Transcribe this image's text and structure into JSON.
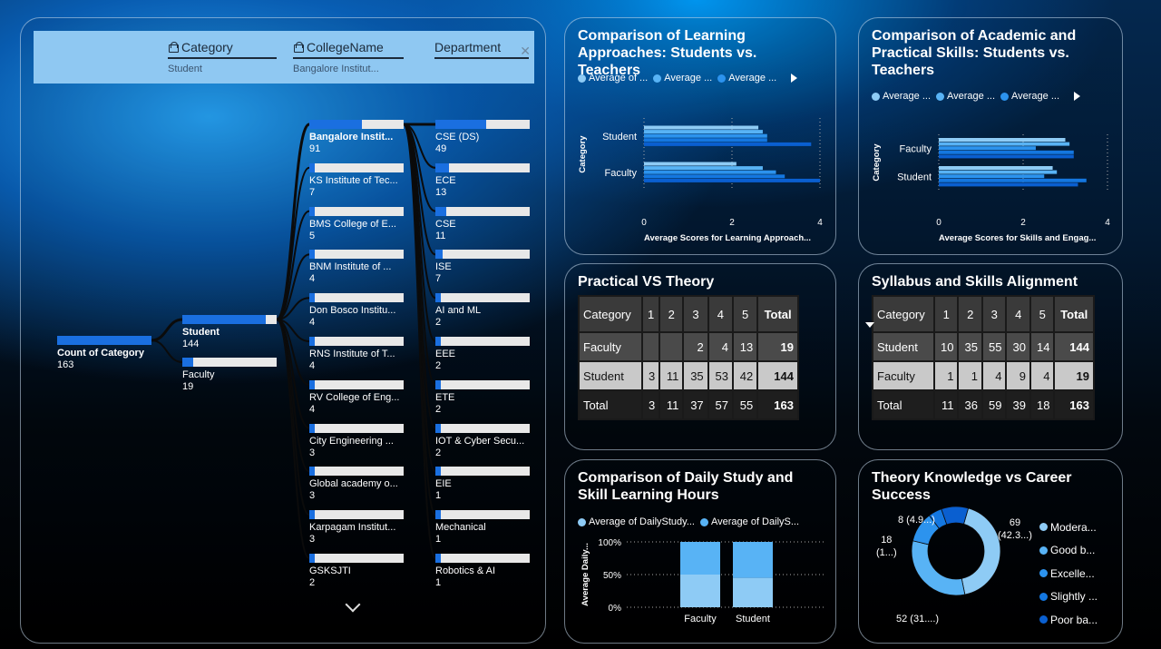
{
  "colors": {
    "c1": "#8ecbf5",
    "c2": "#58b3f5",
    "c3": "#2c93ee",
    "c4": "#1477e0",
    "c5": "#0a5fd0"
  },
  "tree": {
    "filters": [
      {
        "label": "Category",
        "value": "Student",
        "locked": true
      },
      {
        "label": "CollegeName",
        "value": "Bangalore Institut...",
        "locked": true
      },
      {
        "label": "Department",
        "value": "",
        "locked": false
      }
    ],
    "root": {
      "label": "Count of Category",
      "value": "163"
    },
    "level1": [
      {
        "label": "Student",
        "value": "144",
        "fill": 0.88,
        "bold": true
      },
      {
        "label": "Faculty",
        "value": "19",
        "fill": 0.12,
        "bold": false
      }
    ],
    "colleges": [
      {
        "label": "Bangalore Instit...",
        "value": "91",
        "fill": 0.56,
        "bold": true
      },
      {
        "label": "KS Institute of Tec...",
        "value": "7",
        "fill": 0.05
      },
      {
        "label": "BMS College of E...",
        "value": "5",
        "fill": 0.04
      },
      {
        "label": "BNM Institute of ...",
        "value": "4",
        "fill": 0.03
      },
      {
        "label": "Don Bosco Institu...",
        "value": "4",
        "fill": 0.03
      },
      {
        "label": "RNS Institute of T...",
        "value": "4",
        "fill": 0.03
      },
      {
        "label": "RV College of Eng...",
        "value": "4",
        "fill": 0.03
      },
      {
        "label": "City Engineering ...",
        "value": "3",
        "fill": 0.02
      },
      {
        "label": "Global academy o...",
        "value": "3",
        "fill": 0.02
      },
      {
        "label": "Karpagam Institut...",
        "value": "3",
        "fill": 0.02
      },
      {
        "label": "GSKSJTI",
        "value": "2",
        "fill": 0.01
      }
    ],
    "departments": [
      {
        "label": "CSE (DS)",
        "value": "49",
        "fill": 0.54
      },
      {
        "label": "ECE",
        "value": "13",
        "fill": 0.14
      },
      {
        "label": "CSE",
        "value": "11",
        "fill": 0.12
      },
      {
        "label": "ISE",
        "value": "7",
        "fill": 0.08
      },
      {
        "label": "AI and ML",
        "value": "2",
        "fill": 0.02
      },
      {
        "label": "EEE",
        "value": "2",
        "fill": 0.02
      },
      {
        "label": "ETE",
        "value": "2",
        "fill": 0.02
      },
      {
        "label": "IOT & Cyber Secu...",
        "value": "2",
        "fill": 0.02
      },
      {
        "label": "EIE",
        "value": "1",
        "fill": 0.01
      },
      {
        "label": "Mechanical",
        "value": "1",
        "fill": 0.01
      },
      {
        "label": "Robotics & AI",
        "value": "1",
        "fill": 0.01
      }
    ]
  },
  "learning_chart": {
    "title": "Comparison of Learning Approaches: Students vs. Teachers",
    "legend": [
      "Average of ...",
      "Average ...",
      "Average ..."
    ],
    "ylabel": "Category",
    "xlabel": "Average Scores for Learning Approach...",
    "ticks": [
      "0",
      "2",
      "4"
    ]
  },
  "skills_chart": {
    "title": "Comparison of Academic and Practical Skills: Students vs. Teachers",
    "legend": [
      "Average ...",
      "Average ...",
      "Average ..."
    ],
    "ylabel": "Category",
    "xlabel": "Average Scores for Skills and Engag...",
    "ticks": [
      "0",
      "2",
      "4"
    ]
  },
  "practical_table": {
    "title": "Practical VS Theory",
    "headers": [
      "Category",
      "1",
      "2",
      "3",
      "4",
      "5",
      "Total"
    ],
    "rows": [
      [
        "Faculty",
        "",
        "",
        "2",
        "4",
        "13",
        "19"
      ],
      [
        "Student",
        "3",
        "11",
        "35",
        "53",
        "42",
        "144"
      ],
      [
        "Total",
        "3",
        "11",
        "37",
        "57",
        "55",
        "163"
      ]
    ]
  },
  "syllabus_table": {
    "title": "Syllabus and Skills Alignment",
    "headers": [
      "Category",
      "1",
      "2",
      "3",
      "4",
      "5",
      "Total"
    ],
    "rows": [
      [
        "Student",
        "10",
        "35",
        "55",
        "30",
        "14",
        "144"
      ],
      [
        "Faculty",
        "1",
        "1",
        "4",
        "9",
        "4",
        "19"
      ],
      [
        "Total",
        "11",
        "36",
        "59",
        "39",
        "18",
        "163"
      ]
    ]
  },
  "study_chart": {
    "title": "Comparison of Daily Study and Skill Learning Hours",
    "legend": [
      "Average of DailyStudy...",
      "Average of DailyS..."
    ],
    "ylabel": "Average Daily...",
    "ticks": [
      "100%",
      "50%",
      "0%"
    ]
  },
  "theory_donut": {
    "title": "Theory Knowledge vs Career Success",
    "labels": [
      "69\n(42.3...)",
      "52 (31....)",
      "18\n(1...)",
      "8 (4.9...)"
    ],
    "legend": [
      "Modera...",
      "Good b...",
      "Excelle...",
      "Slightly ...",
      "Poor ba..."
    ]
  },
  "chart_data": [
    {
      "type": "bar",
      "orientation": "horizontal",
      "title": "Comparison of Learning Approaches: Students vs. Teachers",
      "categories": [
        "Student",
        "Faculty"
      ],
      "series": [
        {
          "values": [
            2.6,
            2.1
          ]
        },
        {
          "values": [
            2.7,
            2.7
          ]
        },
        {
          "values": [
            2.8,
            3.0
          ]
        },
        {
          "values": [
            2.8,
            3.2
          ]
        },
        {
          "values": [
            3.8,
            4.0
          ]
        }
      ],
      "xlabel": "Average Scores for Learning Approach...",
      "ylabel": "Category",
      "xlim": [
        0,
        4
      ]
    },
    {
      "type": "bar",
      "orientation": "horizontal",
      "title": "Comparison of Academic and Practical Skills: Students vs. Teachers",
      "categories": [
        "Faculty",
        "Student"
      ],
      "series": [
        {
          "values": [
            3.0,
            2.7
          ]
        },
        {
          "values": [
            3.1,
            2.8
          ]
        },
        {
          "values": [
            2.3,
            2.5
          ]
        },
        {
          "values": [
            3.2,
            3.5
          ]
        },
        {
          "values": [
            3.2,
            3.3
          ]
        }
      ],
      "xlabel": "Average Scores for Skills and Engag...",
      "ylabel": "Category",
      "xlim": [
        0,
        4
      ]
    },
    {
      "type": "bar",
      "stacked": "100%",
      "title": "Comparison of Daily Study and Skill Learning Hours",
      "categories": [
        "Faculty",
        "Student"
      ],
      "series": [
        {
          "values": [
            50,
            45
          ]
        },
        {
          "values": [
            50,
            55
          ]
        }
      ],
      "ylabel": "Average Daily...",
      "ylim": [
        0,
        100
      ]
    },
    {
      "type": "pie",
      "donut": true,
      "title": "Theory Knowledge vs Career Success",
      "categories": [
        "Modera...",
        "Good b...",
        "Excelle...",
        "Slightly ...",
        "Poor ba..."
      ],
      "values": [
        69,
        52,
        18,
        8,
        16
      ]
    }
  ]
}
